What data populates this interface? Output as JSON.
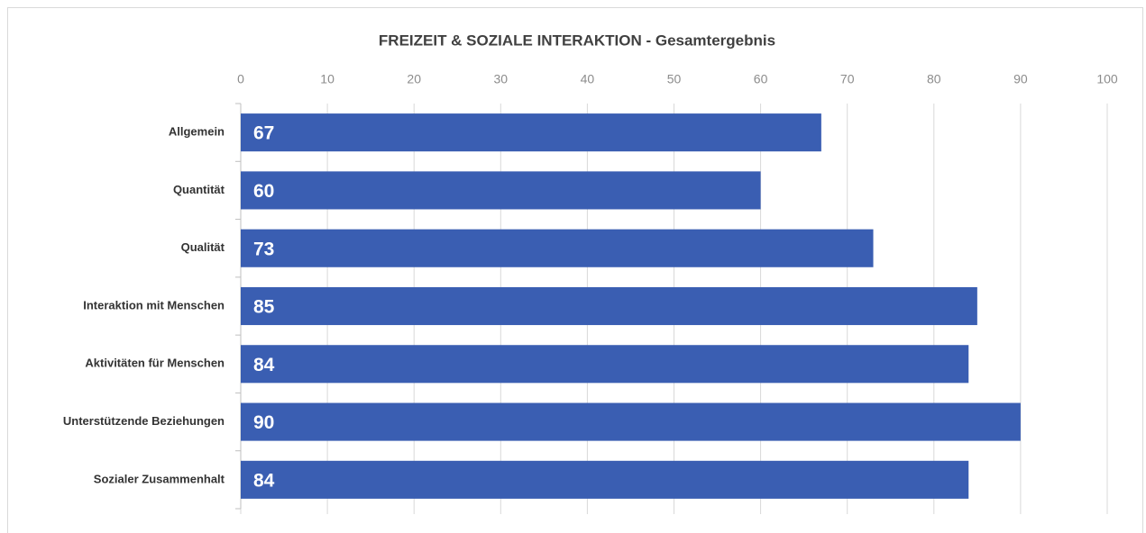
{
  "chart_data": {
    "type": "bar",
    "orientation": "horizontal",
    "title": "FREIZEIT & SOZIALE INTERAKTION - Gesamtergebnis",
    "categories": [
      "Allgemein",
      "Quantität",
      "Qualität",
      "Interaktion mit Menschen",
      "Aktivitäten für Menschen",
      "Unterstützende Beziehungen",
      "Sozialer Zusammenhalt"
    ],
    "values": [
      67,
      60,
      73,
      85,
      84,
      90,
      84
    ],
    "color": "#3a5eb2",
    "xlim": [
      0,
      100
    ],
    "xticks": [
      0,
      10,
      20,
      30,
      40,
      50,
      60,
      70,
      80,
      90,
      100
    ],
    "grid": true
  }
}
